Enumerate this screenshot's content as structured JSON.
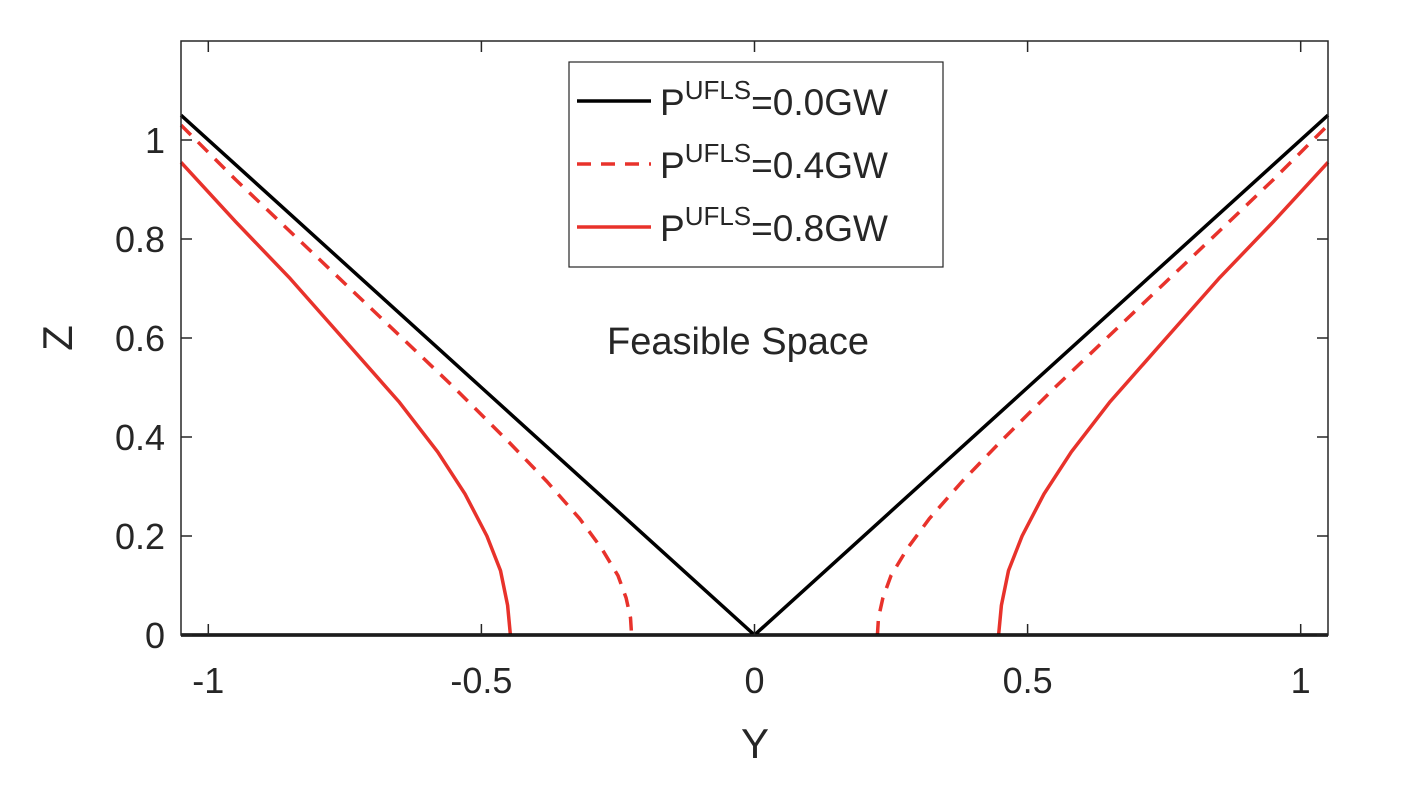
{
  "chart_data": {
    "type": "line",
    "title": "",
    "xlabel": "Y",
    "ylabel": "Z",
    "xlim": [
      -1.05,
      1.05
    ],
    "ylim": [
      0,
      1.2
    ],
    "xticks": [
      -1,
      -0.5,
      0,
      0.5,
      1
    ],
    "xtick_labels": [
      "-1",
      "-0.5",
      "0",
      "0.5",
      "1"
    ],
    "yticks": [
      0,
      0.2,
      0.4,
      0.6,
      0.8,
      1
    ],
    "ytick_labels": [
      "0",
      "0.2",
      "0.4",
      "0.6",
      "0.8",
      "1"
    ],
    "grid": false,
    "legend_position": "top-center",
    "annotations": [
      {
        "text": "Feasible Space",
        "x": -0.02,
        "y": 0.59
      }
    ],
    "series": [
      {
        "name_base": "P",
        "name_sup": "UFLS",
        "name_value": "=0.0GW",
        "color": "#000000",
        "dash": "solid",
        "left_y": [
          -1.05,
          -0.5,
          0
        ],
        "left_z": [
          1.05,
          0.5,
          0
        ],
        "right_y": [
          0,
          0.5,
          1.05
        ],
        "right_z": [
          0,
          0.5,
          1.05
        ]
      },
      {
        "name_base": "P",
        "name_sup": "UFLS",
        "name_value": "=0.4GW",
        "color": "#e8322b",
        "dash": "dashed",
        "left_y": [
          -1.05,
          -0.95,
          -0.85,
          -0.75,
          -0.65,
          -0.55,
          -0.45,
          -0.38,
          -0.32,
          -0.28,
          -0.25,
          -0.235,
          -0.227,
          -0.225
        ],
        "left_z": [
          1.03,
          0.92,
          0.815,
          0.71,
          0.605,
          0.5,
          0.39,
          0.31,
          0.235,
          0.175,
          0.12,
          0.075,
          0.035,
          0
        ],
        "right_y": [
          0.225,
          0.227,
          0.235,
          0.25,
          0.28,
          0.32,
          0.38,
          0.45,
          0.55,
          0.65,
          0.75,
          0.85,
          0.95,
          1.05
        ],
        "right_z": [
          0,
          0.035,
          0.075,
          0.12,
          0.175,
          0.235,
          0.31,
          0.39,
          0.5,
          0.605,
          0.71,
          0.815,
          0.92,
          1.03
        ]
      },
      {
        "name_base": "P",
        "name_sup": "UFLS",
        "name_value": "=0.8GW",
        "color": "#e8322b",
        "dash": "solid",
        "left_y": [
          -1.05,
          -0.95,
          -0.85,
          -0.75,
          -0.65,
          -0.58,
          -0.53,
          -0.49,
          -0.465,
          -0.452,
          -0.447
        ],
        "left_z": [
          0.955,
          0.835,
          0.72,
          0.595,
          0.47,
          0.37,
          0.285,
          0.2,
          0.13,
          0.06,
          0
        ],
        "right_y": [
          0.447,
          0.452,
          0.465,
          0.49,
          0.53,
          0.58,
          0.65,
          0.75,
          0.85,
          0.95,
          1.05
        ],
        "right_z": [
          0,
          0.06,
          0.13,
          0.2,
          0.285,
          0.37,
          0.47,
          0.595,
          0.72,
          0.835,
          0.955
        ]
      }
    ]
  }
}
